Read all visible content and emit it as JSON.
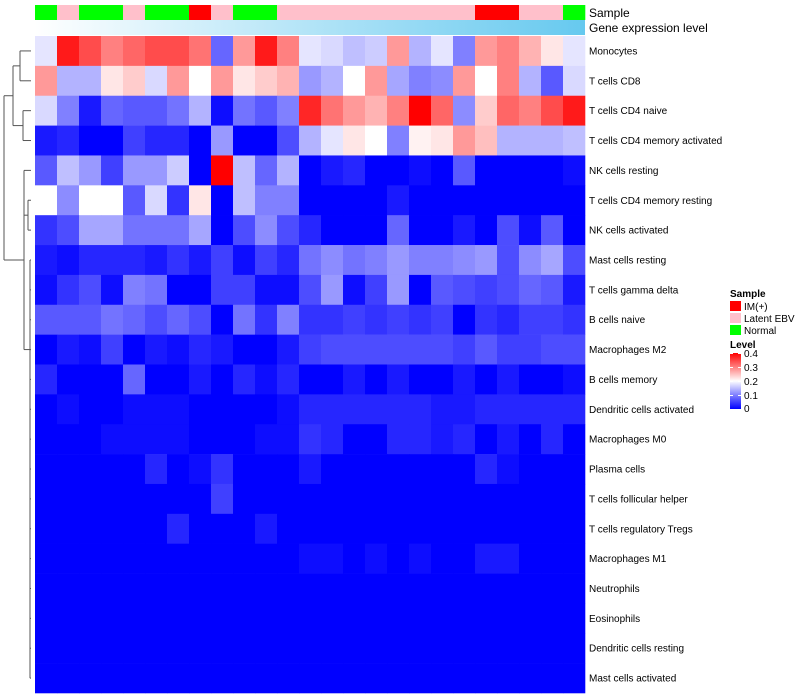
{
  "chart_data": {
    "type": "heatmap",
    "annotations": [
      {
        "name": "Sample"
      },
      {
        "name": "Gene expression level"
      }
    ],
    "sample_groups": [
      "Normal",
      "Latent EBV",
      "Normal",
      "Normal",
      "Latent EBV",
      "Normal",
      "Normal",
      "IM(+)",
      "Latent EBV",
      "Normal",
      "Normal",
      "Latent EBV",
      "Latent EBV",
      "Latent EBV",
      "Latent EBV",
      "Latent EBV",
      "Latent EBV",
      "Latent EBV",
      "Latent EBV",
      "Latent EBV",
      "IM(+)",
      "IM(+)",
      "Latent EBV",
      "Latent EBV",
      "Normal"
    ],
    "sample_colors": {
      "IM(+)": "#ff0000",
      "Latent EBV": "#ffc0cb",
      "Normal": "#00ff00"
    },
    "expression_gradient": [
      "#ffffff",
      "#66c9ef"
    ],
    "rows": [
      "Monocytes",
      "T cells CD8",
      "T cells CD4 naive",
      "T cells CD4 memory activated",
      "NK cells resting",
      "T cells CD4 memory resting",
      "NK cells activated",
      "Mast cells resting",
      "T cells gamma delta",
      "B cells naive",
      "Macrophages M2",
      "B cells memory",
      "Dendritic cells activated",
      "Macrophages M0",
      "Plasma cells",
      "T cells follicular helper",
      "T cells regulatory  Tregs",
      "Macrophages M1",
      "Neutrophils",
      "Eosinophils",
      "Dendritic cells resting",
      "Mast cells activated"
    ],
    "values": [
      [
        0.18,
        0.38,
        0.34,
        0.3,
        0.32,
        0.34,
        0.34,
        0.31,
        0.08,
        0.28,
        0.38,
        0.3,
        0.18,
        0.17,
        0.15,
        0.16,
        0.28,
        0.14,
        0.18,
        0.1,
        0.28,
        0.3,
        0.26,
        0.22,
        0.18
      ],
      [
        0.28,
        0.14,
        0.14,
        0.22,
        0.24,
        0.17,
        0.28,
        0.2,
        0.28,
        0.22,
        0.24,
        0.26,
        0.12,
        0.14,
        0.2,
        0.28,
        0.13,
        0.1,
        0.11,
        0.28,
        0.2,
        0.3,
        0.14,
        0.07,
        0.17
      ],
      [
        0.17,
        0.1,
        0.02,
        0.08,
        0.07,
        0.07,
        0.09,
        0.14,
        0.01,
        0.09,
        0.07,
        0.1,
        0.37,
        0.31,
        0.28,
        0.26,
        0.3,
        0.4,
        0.32,
        0.11,
        0.24,
        0.32,
        0.3,
        0.34,
        0.38
      ],
      [
        0.02,
        0.03,
        0.0,
        0.0,
        0.05,
        0.03,
        0.03,
        0.0,
        0.12,
        0.0,
        0.0,
        0.06,
        0.14,
        0.18,
        0.22,
        0.2,
        0.1,
        0.21,
        0.22,
        0.28,
        0.25,
        0.14,
        0.14,
        0.14,
        0.15
      ],
      [
        0.07,
        0.15,
        0.12,
        0.05,
        0.12,
        0.12,
        0.16,
        0.0,
        0.4,
        0.15,
        0.08,
        0.14,
        0.0,
        0.02,
        0.03,
        0.0,
        0.0,
        0.01,
        0.0,
        0.07,
        0.0,
        0.0,
        0.0,
        0.0,
        0.01
      ],
      [
        0.2,
        0.11,
        0.2,
        0.2,
        0.07,
        0.17,
        0.04,
        0.22,
        0.0,
        0.15,
        0.1,
        0.1,
        0.0,
        0.0,
        0.0,
        0.0,
        0.02,
        0.0,
        0.0,
        0.0,
        0.0,
        0.0,
        0.0,
        0.0,
        0.0
      ],
      [
        0.04,
        0.06,
        0.13,
        0.13,
        0.09,
        0.09,
        0.09,
        0.13,
        0.0,
        0.06,
        0.11,
        0.06,
        0.03,
        0.0,
        0.0,
        0.0,
        0.08,
        0.0,
        0.0,
        0.02,
        0.0,
        0.06,
        0.01,
        0.07,
        0.0
      ],
      [
        0.02,
        0.01,
        0.03,
        0.03,
        0.03,
        0.02,
        0.04,
        0.02,
        0.05,
        0.01,
        0.05,
        0.03,
        0.09,
        0.11,
        0.09,
        0.1,
        0.12,
        0.1,
        0.1,
        0.11,
        0.12,
        0.06,
        0.11,
        0.13,
        0.06
      ],
      [
        0.01,
        0.04,
        0.06,
        0.01,
        0.1,
        0.09,
        0.0,
        0.0,
        0.05,
        0.05,
        0.01,
        0.01,
        0.06,
        0.12,
        0.01,
        0.05,
        0.12,
        0.0,
        0.07,
        0.06,
        0.05,
        0.06,
        0.08,
        0.07,
        0.02
      ],
      [
        0.07,
        0.07,
        0.07,
        0.09,
        0.08,
        0.06,
        0.08,
        0.06,
        0.0,
        0.09,
        0.04,
        0.1,
        0.04,
        0.04,
        0.05,
        0.04,
        0.05,
        0.04,
        0.05,
        0.0,
        0.04,
        0.03,
        0.05,
        0.05,
        0.04
      ],
      [
        0.0,
        0.02,
        0.01,
        0.05,
        0.0,
        0.02,
        0.01,
        0.03,
        0.02,
        0.0,
        0.0,
        0.02,
        0.05,
        0.06,
        0.06,
        0.06,
        0.06,
        0.06,
        0.06,
        0.05,
        0.07,
        0.05,
        0.05,
        0.06,
        0.06
      ],
      [
        0.03,
        0.0,
        0.0,
        0.0,
        0.08,
        0.0,
        0.0,
        0.02,
        0.0,
        0.03,
        0.01,
        0.03,
        0.0,
        0.0,
        0.02,
        0.0,
        0.02,
        0.0,
        0.0,
        0.02,
        0.0,
        0.02,
        0.0,
        0.0,
        0.01
      ],
      [
        0.0,
        0.01,
        0.0,
        0.0,
        0.01,
        0.01,
        0.01,
        0.0,
        0.0,
        0.0,
        0.0,
        0.01,
        0.03,
        0.03,
        0.03,
        0.03,
        0.03,
        0.03,
        0.02,
        0.02,
        0.03,
        0.03,
        0.03,
        0.03,
        0.03
      ],
      [
        0.0,
        0.0,
        0.0,
        0.01,
        0.01,
        0.01,
        0.01,
        0.0,
        0.0,
        0.0,
        0.01,
        0.01,
        0.04,
        0.03,
        0.0,
        0.0,
        0.03,
        0.03,
        0.02,
        0.03,
        0.0,
        0.02,
        0.0,
        0.03,
        0.0
      ],
      [
        0.0,
        0.0,
        0.0,
        0.0,
        0.0,
        0.03,
        0.0,
        0.01,
        0.04,
        0.0,
        0.0,
        0.0,
        0.02,
        0.0,
        0.0,
        0.0,
        0.0,
        0.0,
        0.0,
        0.0,
        0.03,
        0.01,
        0.0,
        0.0,
        0.0
      ],
      [
        0.0,
        0.0,
        0.0,
        0.0,
        0.0,
        0.0,
        0.0,
        0.0,
        0.05,
        0.0,
        0.0,
        0.0,
        0.0,
        0.0,
        0.0,
        0.0,
        0.0,
        0.0,
        0.0,
        0.0,
        0.0,
        0.0,
        0.0,
        0.0,
        0.0
      ],
      [
        0.0,
        0.0,
        0.0,
        0.0,
        0.0,
        0.0,
        0.03,
        0.0,
        0.0,
        0.0,
        0.02,
        0.0,
        0.0,
        0.0,
        0.0,
        0.0,
        0.0,
        0.0,
        0.0,
        0.0,
        0.0,
        0.0,
        0.0,
        0.0,
        0.0
      ],
      [
        0.0,
        0.0,
        0.0,
        0.0,
        0.0,
        0.0,
        0.0,
        0.0,
        0.0,
        0.0,
        0.0,
        0.0,
        0.01,
        0.01,
        0.0,
        0.01,
        0.0,
        0.01,
        0.0,
        0.0,
        0.02,
        0.02,
        0.0,
        0.0,
        0.0
      ],
      [
        0.0,
        0.0,
        0.0,
        0.0,
        0.0,
        0.0,
        0.0,
        0.0,
        0.0,
        0.0,
        0.0,
        0.0,
        0.0,
        0.0,
        0.0,
        0.0,
        0.0,
        0.0,
        0.0,
        0.0,
        0.0,
        0.0,
        0.0,
        0.0,
        0.0
      ],
      [
        0.0,
        0.0,
        0.0,
        0.0,
        0.0,
        0.0,
        0.0,
        0.0,
        0.0,
        0.0,
        0.0,
        0.0,
        0.0,
        0.0,
        0.0,
        0.0,
        0.0,
        0.0,
        0.0,
        0.0,
        0.0,
        0.0,
        0.0,
        0.0,
        0.0
      ],
      [
        0.0,
        0.0,
        0.0,
        0.0,
        0.0,
        0.0,
        0.0,
        0.0,
        0.0,
        0.0,
        0.0,
        0.0,
        0.0,
        0.0,
        0.0,
        0.0,
        0.0,
        0.0,
        0.0,
        0.0,
        0.0,
        0.0,
        0.0,
        0.0,
        0.0
      ],
      [
        0.0,
        0.0,
        0.0,
        0.0,
        0.0,
        0.0,
        0.0,
        0.0,
        0.0,
        0.0,
        0.0,
        0.0,
        0.0,
        0.0,
        0.0,
        0.0,
        0.0,
        0.0,
        0.0,
        0.0,
        0.0,
        0.0,
        0.0,
        0.0,
        0.0
      ]
    ],
    "color_scale": {
      "range": [
        0,
        0.4
      ],
      "stops": [
        [
          0.0,
          "#0000ff"
        ],
        [
          0.2,
          "#ffffff"
        ],
        [
          0.4,
          "#ff0000"
        ]
      ]
    },
    "legend": {
      "sample_title": "Sample",
      "sample_entries": [
        "IM(+)",
        "Latent EBV",
        "Normal"
      ],
      "level_title": "Level",
      "level_ticks": [
        "0.4",
        "0.3",
        "0.2",
        "0.1",
        "0"
      ],
      "placement": "right"
    }
  }
}
